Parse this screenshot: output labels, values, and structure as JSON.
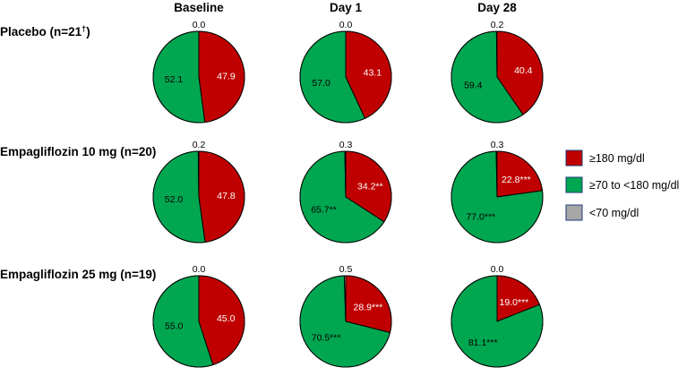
{
  "chart_data": {
    "type": "pie",
    "columns": [
      "Baseline",
      "Day 1",
      "Day 28"
    ],
    "legend": {
      "placement": "right",
      "entries": [
        {
          "label": "≥180 mg/dl",
          "color": "#c00000"
        },
        {
          "label": "≥70 to <180 mg/dl",
          "color": "#00a650"
        },
        {
          "label": "<70 mg/dl",
          "color": "#a6a6a6"
        }
      ]
    },
    "rows": [
      {
        "title": "Placebo (n=21",
        "title_sup": "†",
        "title_end": ")",
        "pies": [
          {
            "high": 47.9,
            "normal": 52.1,
            "low": 0.0,
            "high_label": "47.9",
            "normal_label": "52.1",
            "low_label": "0.0"
          },
          {
            "high": 43.1,
            "normal": 57.0,
            "low": 0.0,
            "high_label": "43.1",
            "normal_label": "57.0",
            "low_label": "0.0"
          },
          {
            "high": 40.4,
            "normal": 59.4,
            "low": 0.2,
            "high_label": "40.4",
            "normal_label": "59.4",
            "low_label": "0.2"
          }
        ]
      },
      {
        "title": "Empagliflozin 10 mg (n=20)",
        "title_sup": "",
        "title_end": "",
        "pies": [
          {
            "high": 47.8,
            "normal": 52.0,
            "low": 0.2,
            "high_label": "47.8",
            "normal_label": "52.0",
            "low_label": "0.2"
          },
          {
            "high": 34.2,
            "normal": 65.7,
            "low": 0.3,
            "high_label": "34.2**",
            "normal_label": "65.7**",
            "low_label": "0.3"
          },
          {
            "high": 22.8,
            "normal": 77.0,
            "low": 0.3,
            "high_label": "22.8***",
            "normal_label": "77.0***",
            "low_label": "0.3"
          }
        ]
      },
      {
        "title": "Empagliflozin 25 mg (n=19)",
        "title_sup": "",
        "title_end": "",
        "pies": [
          {
            "high": 45.0,
            "normal": 55.0,
            "low": 0.0,
            "high_label": "45.0",
            "normal_label": "55.0",
            "low_label": "0.0"
          },
          {
            "high": 28.9,
            "normal": 70.5,
            "low": 0.5,
            "high_label": "28.9***",
            "normal_label": "70.5***",
            "low_label": "0.5"
          },
          {
            "high": 19.0,
            "normal": 81.1,
            "low": 0.0,
            "high_label": "19.0***",
            "normal_label": "81.1***",
            "low_label": "0.0"
          }
        ]
      }
    ]
  }
}
